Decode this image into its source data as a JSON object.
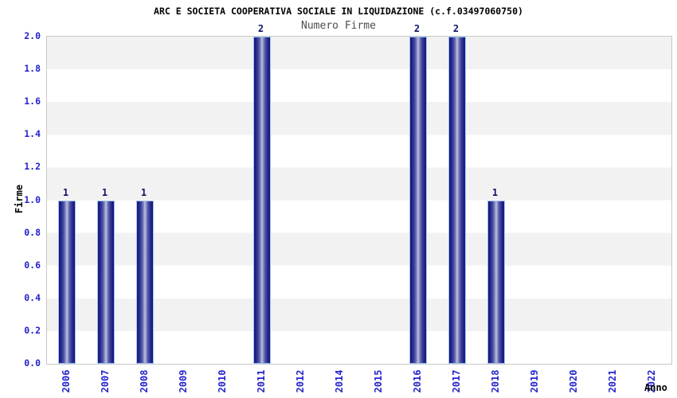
{
  "chart_data": {
    "type": "bar",
    "title": "ARC E SOCIETA COOPERATIVA SOCIALE IN LIQUIDAZIONE (c.f.03497060750)",
    "subtitle": "Numero Firme",
    "xlabel": "Anno",
    "ylabel": "Firme",
    "categories": [
      "2006",
      "2007",
      "2008",
      "2009",
      "2010",
      "2011",
      "2012",
      "2014",
      "2015",
      "2016",
      "2017",
      "2018",
      "2019",
      "2020",
      "2021",
      "2022"
    ],
    "values": [
      1,
      1,
      1,
      0,
      0,
      2,
      0,
      0,
      0,
      2,
      2,
      1,
      0,
      0,
      0,
      0
    ],
    "bar_value_labels": [
      "1",
      "1",
      "1",
      "",
      "",
      "2",
      "",
      "",
      "",
      "2",
      "2",
      "1",
      "",
      "",
      "",
      ""
    ],
    "ylim": [
      0,
      2
    ],
    "ytick_labels": [
      "0.0",
      "0.2",
      "0.4",
      "0.6",
      "0.8",
      "1.0",
      "1.2",
      "1.4",
      "1.6",
      "1.8",
      "2.0"
    ],
    "legend_position": "none",
    "grid": "horizontal-alternating-bands",
    "colors": {
      "bar_dark": "#16167a",
      "bar_light": "#c3c6e4",
      "bar_border": "#9cc4f0",
      "axis_tick_label": "#2424cc",
      "bar_value_label": "#10106a",
      "band_gray": "#f2f2f2",
      "band_white": "#ffffff",
      "plot_border": "#c8c8c8",
      "title": "#000000",
      "subtitle": "#4d4d4d"
    }
  }
}
